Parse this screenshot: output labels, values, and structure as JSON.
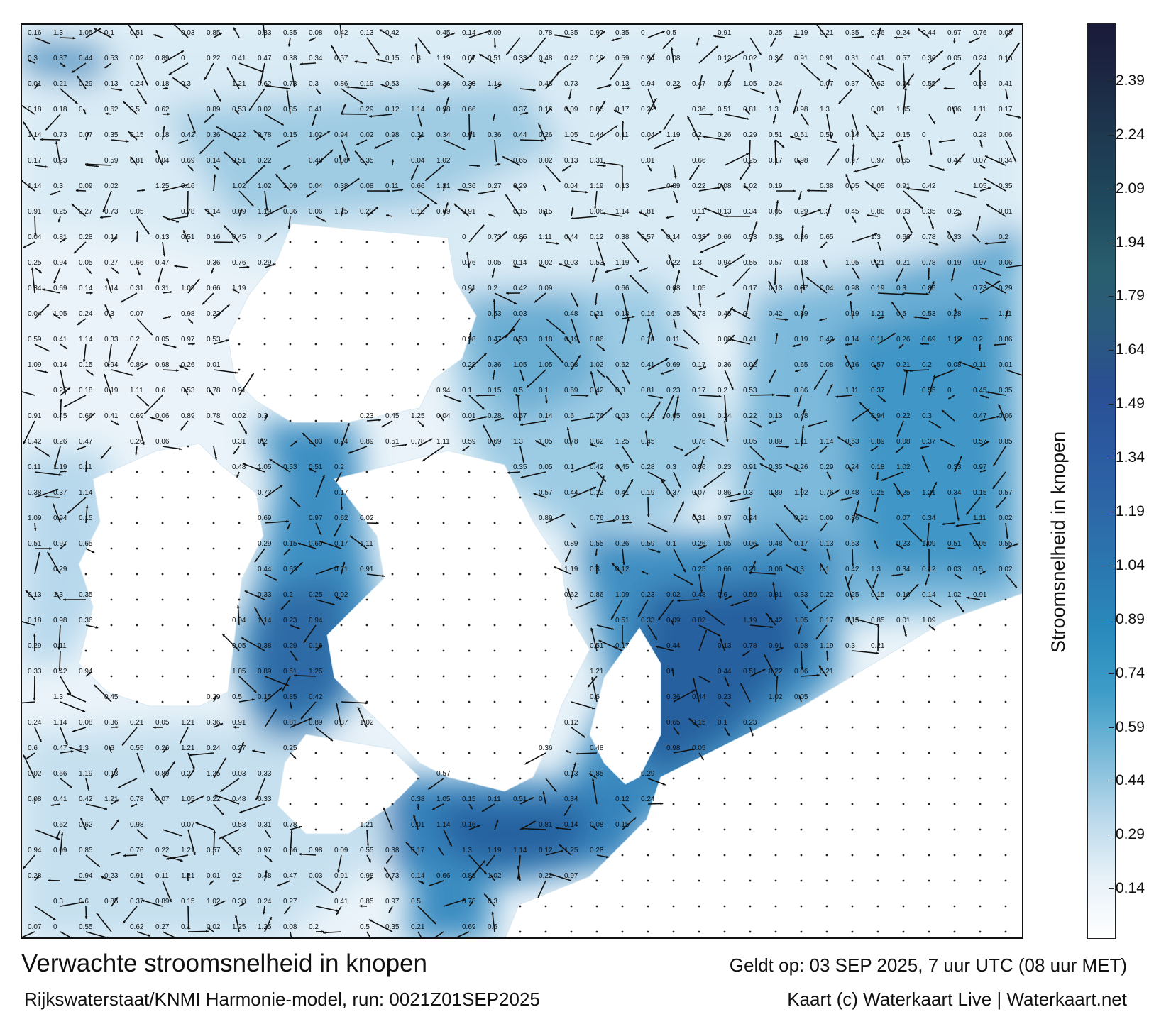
{
  "colorbar": {
    "ticks": [
      "2.39",
      "2.24",
      "2.09",
      "1.94",
      "1.79",
      "1.64",
      "1.49",
      "1.34",
      "1.19",
      "1.04",
      "0.89",
      "0.74",
      "0.59",
      "0.44",
      "0.29",
      "0.14"
    ],
    "tick_values": [
      2.39,
      2.24,
      2.09,
      1.94,
      1.79,
      1.64,
      1.49,
      1.34,
      1.19,
      1.04,
      0.89,
      0.74,
      0.59,
      0.44,
      0.29,
      0.14
    ],
    "range": [
      0,
      2.55
    ],
    "title": "Stroomsnelheid in knopen",
    "colors": [
      "#ffffff",
      "#e6f1f8",
      "#b9d8eb",
      "#7bbad9",
      "#3f9dc8",
      "#2a8bbd",
      "#2a79b0",
      "#2d68a8",
      "#2b5aa0",
      "#2a4f93",
      "#2a5a7d",
      "#295e6d",
      "#1f4a5e",
      "#1e3b52",
      "#1c2a45",
      "#1a1a3a"
    ]
  },
  "footer": {
    "title": "Verwachte stroomsnelheid in knopen",
    "valid": "Geldt op: 03 SEP 2025, 7 uur UTC (08 uur MET)",
    "model": "Rijkswaterstaat/KNMI Harmonie-model, run: 0021Z01SEP2025",
    "credit": "Kaart (c) Waterkaart Live | Waterkaart.net"
  },
  "map": {
    "speed_labels": [
      "0.18",
      "0.2",
      "0.25",
      "0.21",
      "0.28",
      "0.22",
      "0.24",
      "0.17",
      "0.27",
      "0.19",
      "0.36",
      "0.34",
      "0.11",
      "0.15",
      "0.23",
      "0.12",
      "0.13",
      "0.1",
      "0.16",
      "0.14",
      "0.09",
      "0.26",
      "0.3",
      "0.29",
      "0.33",
      "0.31",
      "0.35",
      "0.38",
      "0.37",
      "0.41",
      "0.42",
      "0.44",
      "0.45",
      "0.47",
      "0.48",
      "0.5",
      "0.51",
      "0.53",
      "0.55",
      "0.57",
      "0.59",
      "0.6",
      "0.62",
      "0.65",
      "0.66",
      "0.69",
      "0.73",
      "0.76",
      "0.78",
      "0.81",
      "0.85",
      "0.86",
      "0.89",
      "0.91",
      "0.94",
      "0.97",
      "0.98",
      "1.02",
      "1.05",
      "1.09",
      "1.11",
      "1.14",
      "1.19",
      "1.21",
      "1.25",
      "1.3",
      "0.08",
      "0.07",
      "0.06",
      "0.05",
      "0.04",
      "0.03",
      "0.02",
      "0.01",
      "0"
    ]
  }
}
